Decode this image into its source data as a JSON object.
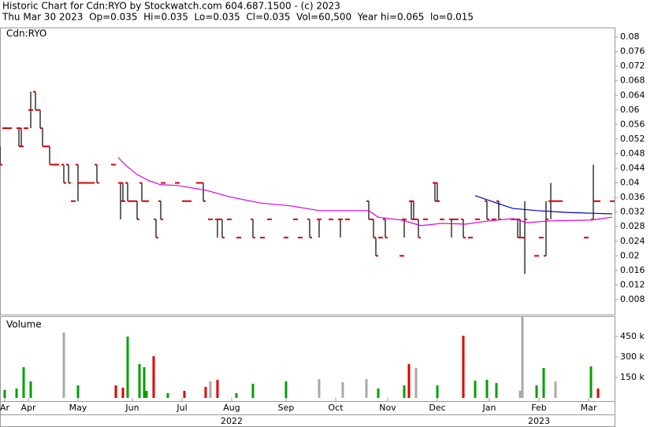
{
  "chart_data": [
    {
      "type": "ohlc",
      "title": "Historic Chart for Cdn:RYO by Stockwatch.com 604.687.1500 - (c) 2023",
      "subtitle": "Thu Mar 30 2023  Op=0.035  Hi=0.035  Lo=0.035  Cl=0.035  Vol=60,500  Year hi=0.065  lo=0.015",
      "label": "Cdn:RYO",
      "xlim": [
        0,
        260
      ],
      "ylim": [
        0.0039,
        0.0826
      ],
      "yticks": [
        0.008,
        0.012,
        0.016,
        0.02,
        0.024,
        0.028,
        0.032,
        0.036,
        0.04,
        0.044,
        0.048,
        0.052,
        0.056,
        0.06,
        0.064,
        0.068,
        0.072,
        0.076,
        0.08
      ],
      "color": "#000000",
      "tick_color": "#dd0000",
      "x": [
        0,
        2,
        4,
        8,
        9,
        11,
        13,
        15,
        17,
        18,
        20,
        21,
        23,
        24,
        27,
        29,
        31,
        33,
        35,
        37,
        39,
        41,
        48,
        51,
        52,
        54,
        56,
        58,
        60,
        62,
        66,
        68,
        69,
        75,
        78,
        80,
        84,
        86,
        89,
        92,
        94,
        97,
        101,
        107,
        111,
        114,
        121,
        125,
        127,
        131,
        135,
        140,
        144,
        147,
        156,
        158,
        159,
        161,
        163,
        170,
        171,
        174,
        175,
        177,
        180,
        184,
        185,
        187,
        191,
        193,
        196,
        199,
        202,
        206,
        209,
        211,
        217,
        219,
        220,
        222,
        227,
        229,
        231,
        233,
        235,
        237,
        248,
        251,
        253,
        259
      ],
      "open": [
        0.05,
        0.055,
        0.055,
        0.055,
        0.055,
        0.055,
        0.06,
        0.065,
        0.06,
        0.055,
        0.05,
        0.05,
        0.045,
        0.045,
        0.045,
        0.045,
        0.035,
        0.045,
        0.04,
        0.04,
        0.04,
        0.045,
        0.045,
        0.04,
        0.04,
        0.04,
        0.035,
        0.035,
        0.04,
        0.035,
        0.03,
        0.035,
        0.04,
        0.04,
        0.035,
        0.035,
        0.04,
        0.04,
        0.03,
        0.03,
        0.03,
        0.03,
        0.025,
        0.03,
        0.025,
        0.03,
        0.025,
        0.03,
        0.025,
        0.03,
        0.03,
        0.03,
        0.03,
        0.03,
        0.035,
        0.03,
        0.025,
        0.025,
        0.03,
        0.02,
        0.03,
        0.035,
        0.035,
        0.03,
        0.03,
        0.04,
        0.04,
        0.03,
        0.03,
        0.03,
        0.03,
        0.025,
        0.03,
        0.035,
        0.03,
        0.035,
        0.03,
        0.03,
        0.03,
        0.025,
        0.02,
        0.025,
        0.02,
        0.035,
        0.035,
        0.035,
        0.025,
        0.03,
        0.035,
        0.035
      ],
      "high": [
        0.05,
        0.055,
        0.055,
        0.055,
        0.055,
        0.055,
        0.065,
        0.065,
        0.06,
        0.055,
        0.05,
        0.05,
        0.045,
        0.045,
        0.045,
        0.045,
        0.035,
        0.045,
        0.04,
        0.04,
        0.04,
        0.045,
        0.045,
        0.04,
        0.04,
        0.04,
        0.035,
        0.035,
        0.04,
        0.035,
        0.03,
        0.035,
        0.04,
        0.04,
        0.035,
        0.035,
        0.04,
        0.04,
        0.03,
        0.03,
        0.03,
        0.03,
        0.025,
        0.03,
        0.025,
        0.03,
        0.025,
        0.03,
        0.025,
        0.03,
        0.03,
        0.03,
        0.03,
        0.03,
        0.035,
        0.03,
        0.025,
        0.025,
        0.03,
        0.02,
        0.03,
        0.035,
        0.035,
        0.03,
        0.03,
        0.04,
        0.04,
        0.03,
        0.03,
        0.03,
        0.03,
        0.025,
        0.03,
        0.035,
        0.03,
        0.035,
        0.03,
        0.03,
        0.03,
        0.035,
        0.02,
        0.025,
        0.035,
        0.04,
        0.035,
        0.035,
        0.025,
        0.045,
        0.035,
        0.035
      ],
      "low": [
        0.045,
        0.055,
        0.055,
        0.05,
        0.05,
        0.055,
        0.055,
        0.06,
        0.055,
        0.05,
        0.05,
        0.045,
        0.045,
        0.045,
        0.04,
        0.04,
        0.035,
        0.035,
        0.04,
        0.04,
        0.04,
        0.04,
        0.045,
        0.03,
        0.035,
        0.035,
        0.035,
        0.03,
        0.035,
        0.035,
        0.025,
        0.03,
        0.04,
        0.04,
        0.035,
        0.035,
        0.04,
        0.035,
        0.03,
        0.025,
        0.025,
        0.03,
        0.025,
        0.025,
        0.025,
        0.03,
        0.025,
        0.03,
        0.025,
        0.025,
        0.025,
        0.03,
        0.025,
        0.03,
        0.03,
        0.025,
        0.02,
        0.025,
        0.025,
        0.02,
        0.025,
        0.03,
        0.03,
        0.025,
        0.03,
        0.035,
        0.035,
        0.03,
        0.025,
        0.03,
        0.025,
        0.025,
        0.03,
        0.03,
        0.03,
        0.03,
        0.03,
        0.025,
        0.025,
        0.015,
        0.02,
        0.025,
        0.02,
        0.03,
        0.035,
        0.035,
        0.025,
        0.03,
        0.035,
        0.035
      ],
      "close": [
        0.045,
        0.055,
        0.055,
        0.05,
        0.05,
        0.055,
        0.06,
        0.06,
        0.055,
        0.05,
        0.05,
        0.045,
        0.045,
        0.045,
        0.04,
        0.04,
        0.035,
        0.04,
        0.04,
        0.04,
        0.04,
        0.04,
        0.045,
        0.035,
        0.035,
        0.035,
        0.035,
        0.03,
        0.035,
        0.035,
        0.025,
        0.03,
        0.04,
        0.04,
        0.035,
        0.035,
        0.04,
        0.035,
        0.03,
        0.03,
        0.025,
        0.03,
        0.025,
        0.025,
        0.025,
        0.03,
        0.025,
        0.03,
        0.025,
        0.025,
        0.03,
        0.03,
        0.03,
        0.03,
        0.03,
        0.025,
        0.02,
        0.025,
        0.025,
        0.02,
        0.03,
        0.03,
        0.03,
        0.025,
        0.03,
        0.035,
        0.035,
        0.03,
        0.03,
        0.03,
        0.025,
        0.025,
        0.03,
        0.03,
        0.03,
        0.03,
        0.03,
        0.025,
        0.025,
        0.03,
        0.02,
        0.025,
        0.03,
        0.035,
        0.035,
        0.035,
        0.025,
        0.035,
        0.035,
        0.035
      ],
      "lines": [
        {
          "color": "#dd00dd",
          "x": [
            50,
            53,
            58,
            63,
            68,
            75,
            87,
            97,
            110,
            123,
            135,
            147,
            156,
            160,
            170,
            178,
            187,
            197,
            207,
            217,
            223,
            233,
            250,
            259
          ],
          "values": [
            0.047,
            0.0449,
            0.0423,
            0.0406,
            0.0395,
            0.0393,
            0.038,
            0.0362,
            0.0345,
            0.0337,
            0.0324,
            0.0324,
            0.0324,
            0.0306,
            0.0298,
            0.0283,
            0.0289,
            0.0287,
            0.0296,
            0.0302,
            0.0291,
            0.0296,
            0.0298,
            0.0306
          ]
        },
        {
          "color": "#0000cc",
          "x": [
            201,
            210,
            217,
            227,
            240,
            259
          ],
          "values": [
            0.0365,
            0.0345,
            0.033,
            0.0324,
            0.0319,
            0.0315
          ]
        }
      ]
    },
    {
      "type": "bar",
      "label": "Volume",
      "xlim": [
        0,
        260
      ],
      "ylim": [
        0,
        600000
      ],
      "yticks": [
        {
          "value": 150000,
          "label": "150 k"
        },
        {
          "value": 300000,
          "label": "300 k"
        },
        {
          "value": 450000,
          "label": "450 k"
        }
      ],
      "xticks": [
        {
          "value": 2,
          "label": "Ar"
        },
        {
          "value": 12,
          "label": "Apr"
        },
        {
          "value": 33,
          "label": "May"
        },
        {
          "value": 56,
          "label": "Jun"
        },
        {
          "value": 77,
          "label": "Jul"
        },
        {
          "value": 98,
          "label": "Aug"
        },
        {
          "value": 121,
          "label": "Sep"
        },
        {
          "value": 142,
          "label": "Oct"
        },
        {
          "value": 164,
          "label": "Nov"
        },
        {
          "value": 185,
          "label": "Dec"
        },
        {
          "value": 207,
          "label": "Jan"
        },
        {
          "value": 228,
          "label": "Feb"
        },
        {
          "value": 249,
          "label": "Mar"
        }
      ],
      "year_labels": [
        {
          "value": 98,
          "label": "2022"
        },
        {
          "value": 228,
          "label": "2023"
        }
      ],
      "x": [
        2,
        7,
        10,
        13,
        27,
        33,
        49,
        52,
        54,
        59,
        61,
        62,
        65,
        71,
        78,
        87,
        89,
        92,
        100,
        107,
        121,
        135,
        145,
        155,
        160,
        171,
        173,
        176,
        185,
        196,
        201,
        206,
        210,
        220,
        221,
        227,
        230,
        235,
        250,
        253
      ],
      "values": [
        58000,
        69000,
        225000,
        121000,
        479000,
        92000,
        92000,
        75000,
        450000,
        248000,
        225000,
        52000,
        306000,
        35000,
        52000,
        81000,
        121000,
        133000,
        35000,
        104000,
        121000,
        138000,
        115000,
        138000,
        69000,
        92000,
        248000,
        219000,
        92000,
        456000,
        127000,
        133000,
        110000,
        52000,
        594000,
        92000,
        219000,
        121000,
        231000,
        69000
      ],
      "colors": [
        "#00a000",
        "#00a000",
        "#00a000",
        "#00a000",
        "#a8a8a8",
        "#00a000",
        "#e00000",
        "#e00000",
        "#00a000",
        "#00a000",
        "#00a000",
        "#00a000",
        "#e00000",
        "#00a000",
        "#e00000",
        "#e00000",
        "#a8a8a8",
        "#e00000",
        "#00a000",
        "#00a000",
        "#00a000",
        "#a8a8a8",
        "#a8a8a8",
        "#a8a8a8",
        "#00a000",
        "#00a000",
        "#e00000",
        "#a8a8a8",
        "#00a000",
        "#e00000",
        "#00a000",
        "#00a000",
        "#00a000",
        "#a8a8a8",
        "#a8a8a8",
        "#00a000",
        "#00a000",
        "#a8a8a8",
        "#00a000",
        "#e00000"
      ]
    }
  ]
}
